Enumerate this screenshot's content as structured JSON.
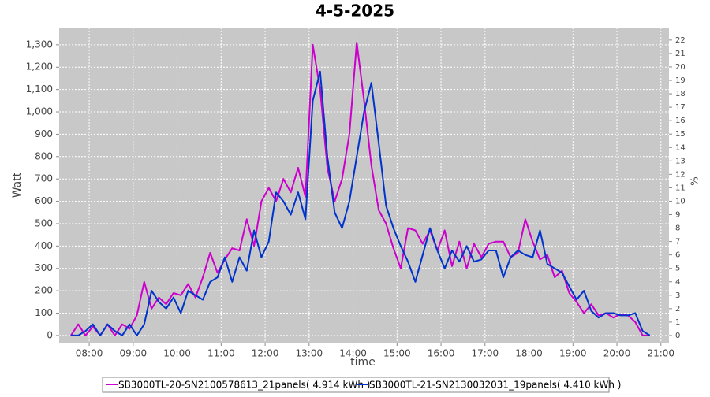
{
  "chart_data": {
    "type": "line",
    "title": "4-5-2025",
    "x_label": "time",
    "y_label": "Watt",
    "y2_label": "%",
    "x": [
      455,
      465,
      475,
      485,
      495,
      505,
      515,
      525,
      535,
      545,
      555,
      565,
      575,
      585,
      595,
      605,
      615,
      625,
      635,
      645,
      655,
      665,
      675,
      685,
      695,
      705,
      715,
      725,
      735,
      745,
      755,
      765,
      775,
      785,
      795,
      805,
      815,
      825,
      835,
      845,
      855,
      865,
      875,
      885,
      895,
      905,
      915,
      925,
      935,
      945,
      955,
      965,
      975,
      985,
      995,
      1005,
      1015,
      1025,
      1035,
      1045,
      1055,
      1065,
      1075,
      1085,
      1095,
      1105,
      1115,
      1125,
      1135,
      1145,
      1155,
      1165,
      1175,
      1185,
      1195,
      1205,
      1215,
      1225,
      1235,
      1245
    ],
    "series": [
      {
        "name": "SB3000TL-20-SN2100578613_21panels( 4.914 kWh )",
        "color": "#cc00cc",
        "values": [
          0,
          50,
          0,
          40,
          0,
          50,
          0,
          50,
          30,
          90,
          240,
          120,
          170,
          140,
          190,
          180,
          230,
          170,
          260,
          370,
          280,
          340,
          390,
          380,
          520,
          400,
          600,
          660,
          600,
          700,
          640,
          750,
          620,
          1300,
          1100,
          750,
          600,
          700,
          900,
          1310,
          1050,
          760,
          560,
          500,
          390,
          300,
          480,
          470,
          410,
          470,
          380,
          470,
          310,
          420,
          300,
          410,
          350,
          410,
          420,
          420,
          350,
          370,
          520,
          420,
          340,
          360,
          260,
          290,
          190,
          150,
          100,
          140,
          90,
          100,
          80,
          95,
          90,
          60,
          0,
          0
        ]
      },
      {
        "name": "SB3000TL-21-SN2130032031_19panels( 4.410 kWh )",
        "color": "#0033cc",
        "values": [
          0,
          0,
          20,
          50,
          0,
          50,
          20,
          0,
          50,
          0,
          50,
          200,
          150,
          120,
          170,
          100,
          200,
          180,
          160,
          240,
          260,
          350,
          240,
          350,
          290,
          470,
          350,
          420,
          640,
          600,
          540,
          640,
          520,
          1050,
          1180,
          800,
          550,
          480,
          600,
          800,
          1000,
          1130,
          860,
          580,
          480,
          400,
          330,
          240,
          360,
          480,
          380,
          300,
          380,
          330,
          400,
          330,
          340,
          380,
          380,
          260,
          350,
          380,
          360,
          350,
          470,
          320,
          300,
          280,
          220,
          160,
          200,
          110,
          80,
          100,
          100,
          90,
          90,
          100,
          20,
          0
        ]
      }
    ],
    "xlim": [
      439,
      1271
    ],
    "xticks": [
      {
        "value": 480,
        "label": "08:00"
      },
      {
        "value": 540,
        "label": "09:00"
      },
      {
        "value": 600,
        "label": "10:00"
      },
      {
        "value": 660,
        "label": "11:00"
      },
      {
        "value": 720,
        "label": "12:00"
      },
      {
        "value": 780,
        "label": "13:00"
      },
      {
        "value": 840,
        "label": "14:00"
      },
      {
        "value": 900,
        "label": "15:00"
      },
      {
        "value": 960,
        "label": "16:00"
      },
      {
        "value": 1020,
        "label": "17:00"
      },
      {
        "value": 1080,
        "label": "18:00"
      },
      {
        "value": 1140,
        "label": "19:00"
      },
      {
        "value": 1200,
        "label": "20:00"
      },
      {
        "value": 1260,
        "label": "21:00"
      }
    ],
    "ylim": [
      -32,
      1377
    ],
    "yticks": [
      0,
      100,
      200,
      300,
      400,
      500,
      600,
      700,
      800,
      900,
      {
        "value": 1000,
        "label": "1,000"
      },
      {
        "value": 1100,
        "label": "1,100"
      },
      {
        "value": 1200,
        "label": "1,200"
      },
      {
        "value": 1300,
        "label": "1,300"
      }
    ],
    "y2lim": [
      -0.53,
      22.93
    ],
    "y2ticks": [
      0,
      1,
      2,
      3,
      4,
      5,
      6,
      7,
      8,
      9,
      10,
      11,
      12,
      13,
      14,
      15,
      16,
      17,
      18,
      19,
      20,
      21,
      22
    ],
    "grid": true
  }
}
